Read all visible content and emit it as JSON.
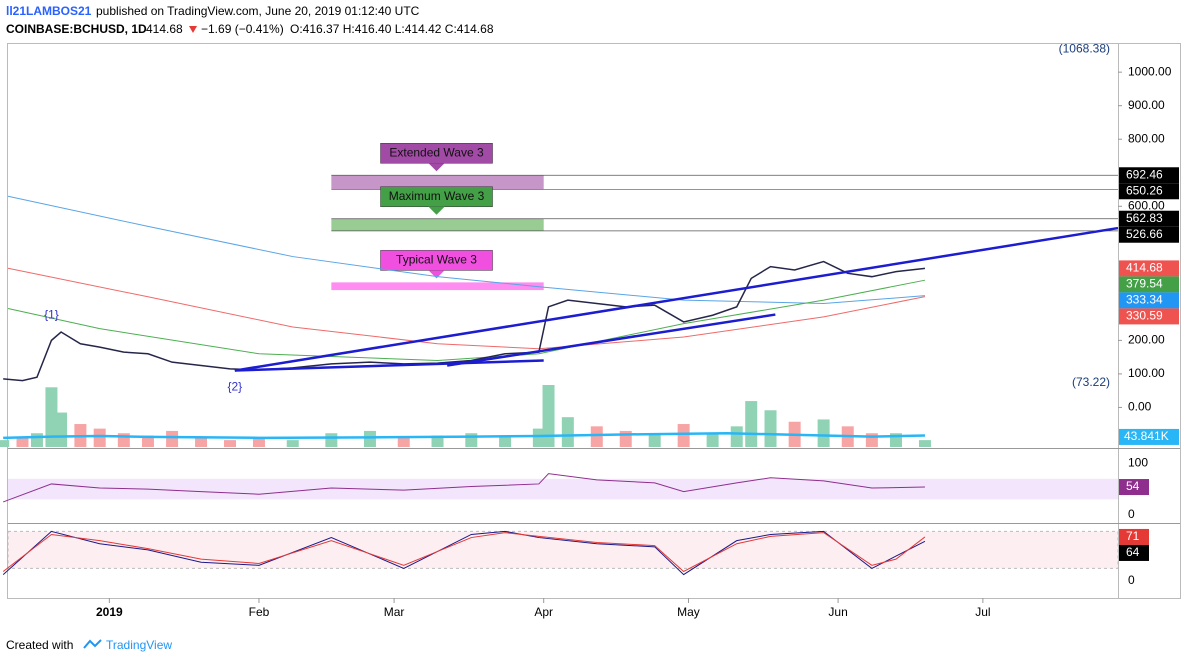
{
  "header": {
    "author": "ll21LAMBOS21",
    "published": "published on TradingView.com, June 20, 2019 01:12:40 UTC",
    "symbol": "COINBASE:BCHUSD, 1D",
    "last": "414.68",
    "change": "−1.69 (−0.41%)",
    "ohlc": "O:416.37 H:416.40 L:414.42 C:414.68"
  },
  "footer": {
    "created": "Created with",
    "brand": "TradingView"
  },
  "chart_data": {
    "type": "line",
    "xlim": [
      1,
      231
    ],
    "ylim": [
      -121,
      1084
    ],
    "xticks": [
      {
        "value": 22,
        "label": "2019"
      },
      {
        "value": 53,
        "label": "Feb"
      },
      {
        "value": 81,
        "label": "Mar"
      },
      {
        "value": 112,
        "label": "Apr"
      },
      {
        "value": 142,
        "label": "May"
      },
      {
        "value": 173,
        "label": "Jun"
      },
      {
        "value": 203,
        "label": "Jul"
      }
    ],
    "yticks": [
      {
        "value": 0,
        "label": "0.00"
      },
      {
        "value": 100,
        "label": "100.00"
      },
      {
        "value": 200,
        "label": "200.00"
      },
      {
        "value": 600,
        "label": "600.00"
      },
      {
        "value": 800,
        "label": "800.00"
      },
      {
        "value": 900,
        "label": "900.00"
      },
      {
        "value": 1000,
        "label": "1000.00"
      }
    ],
    "x": [
      0,
      4,
      7,
      10,
      12,
      16,
      20,
      25,
      30,
      35,
      41,
      47,
      53,
      60,
      68,
      76,
      83,
      90,
      97,
      104,
      111,
      113,
      117,
      123,
      129,
      135,
      141,
      147,
      152,
      155,
      159,
      164,
      170,
      175,
      180,
      185,
      191
    ],
    "series": [
      {
        "name": "BCHUSD",
        "color": "#26264a",
        "values": [
          85,
          80,
          90,
          200,
          225,
          190,
          180,
          165,
          160,
          135,
          125,
          115,
          112,
          118,
          130,
          135,
          130,
          132,
          140,
          160,
          165,
          300,
          320,
          310,
          300,
          305,
          255,
          275,
          300,
          385,
          420,
          410,
          435,
          400,
          390,
          405,
          414.68
        ]
      }
    ],
    "moving_averages": [
      {
        "color": "#5aa5e6",
        "x": [
          1,
          30,
          60,
          90,
          111,
          141,
          170,
          191
        ],
        "values": [
          630,
          540,
          450,
          390,
          360,
          320,
          310,
          333.34
        ]
      },
      {
        "color": "#ef6a6a",
        "x": [
          1,
          30,
          60,
          90,
          111,
          141,
          170,
          191
        ],
        "values": [
          415,
          330,
          240,
          190,
          175,
          210,
          270,
          330.59
        ]
      },
      {
        "color": "#4caf50",
        "x": [
          1,
          20,
          53,
          90,
          111,
          141,
          170,
          191
        ],
        "values": [
          295,
          235,
          160,
          140,
          160,
          250,
          320,
          379.54
        ]
      }
    ],
    "trendlines": [
      {
        "x": [
          48,
          231
        ],
        "y": [
          110,
          535
        ]
      },
      {
        "x": [
          92,
          160
        ],
        "y": [
          125,
          277
        ]
      },
      {
        "x": [
          48,
          112
        ],
        "y": [
          110,
          140
        ]
      }
    ],
    "zones": [
      {
        "label": "Extended Wave 3",
        "from": 650.26,
        "to": 692.46,
        "x": [
          68,
          112
        ],
        "color": "#c796c8",
        "tag": "#a24ba6"
      },
      {
        "label": "Maximum Wave 3",
        "from": 526.66,
        "to": 562.83,
        "x": [
          68,
          112
        ],
        "color": "#98cc92",
        "tag": "#43a047"
      },
      {
        "label": "Typical Wave 3",
        "from": 350,
        "to": 373,
        "x": [
          68,
          112
        ],
        "color": "#ff8cf0",
        "tag": "#f04fe0"
      }
    ],
    "annotations": [
      {
        "label": "{1}",
        "x": 10,
        "y": 275
      },
      {
        "label": "{2}",
        "x": 48,
        "y": 60
      }
    ],
    "hi_lo": [
      {
        "value": 1068.38,
        "label": "(1068.38)"
      },
      {
        "value": 73.22,
        "label": "(73.22)"
      }
    ],
    "price_labels": [
      {
        "value": 692.46,
        "color": "#000000"
      },
      {
        "value": 650.26,
        "color": "#000000"
      },
      {
        "value": 562.83,
        "color": "#000000"
      },
      {
        "value": 526.66,
        "color": "#000000"
      },
      {
        "value": 414.68,
        "color": "#ef5350"
      },
      {
        "value": 379.54,
        "color": "#43a047"
      },
      {
        "value": 333.34,
        "color": "#2196f3"
      },
      {
        "value": 330.59,
        "color": "#ef5350"
      }
    ],
    "volume": {
      "vlim": [
        0,
        270
      ],
      "values": [
        30,
        40,
        60,
        260,
        150,
        100,
        80,
        60,
        50,
        70,
        40,
        30,
        35,
        30,
        60,
        70,
        45,
        50,
        60,
        50,
        80,
        270,
        130,
        90,
        70,
        60,
        100,
        60,
        90,
        200,
        160,
        110,
        120,
        90,
        60,
        60,
        30
      ],
      "ma": [
        40,
        45,
        48,
        44,
        40,
        42,
        45,
        48,
        55,
        60,
        50,
        45,
        50
      ],
      "ma_x": [
        0,
        10,
        20,
        30,
        53,
        76,
        97,
        111,
        130,
        150,
        170,
        180,
        191
      ],
      "label": {
        "value": 43.841,
        "label": "43.841K"
      }
    },
    "rsi": {
      "ylim": [
        -16,
        128
      ],
      "yticks": [
        0,
        100
      ],
      "band": [
        30,
        70
      ],
      "x": [
        0,
        10,
        20,
        30,
        41,
        53,
        68,
        83,
        97,
        111,
        113,
        123,
        135,
        141,
        152,
        159,
        170,
        180,
        191
      ],
      "values": [
        25,
        60,
        52,
        50,
        45,
        40,
        52,
        48,
        55,
        60,
        80,
        68,
        62,
        45,
        62,
        72,
        66,
        52,
        54
      ],
      "last": 54
    },
    "stoch": {
      "ylim": [
        -28,
        92
      ],
      "yticks": [
        0
      ],
      "band": [
        20,
        80
      ],
      "x": [
        0,
        10,
        20,
        30,
        41,
        53,
        68,
        83,
        97,
        104,
        111,
        123,
        135,
        141,
        152,
        159,
        170,
        180,
        185,
        191
      ],
      "k": [
        10,
        80,
        60,
        50,
        30,
        25,
        70,
        20,
        75,
        80,
        70,
        60,
        55,
        10,
        65,
        75,
        80,
        20,
        40,
        64
      ],
      "d": [
        15,
        75,
        65,
        52,
        35,
        28,
        65,
        25,
        70,
        78,
        72,
        62,
        57,
        15,
        60,
        72,
        78,
        25,
        35,
        71
      ],
      "last": [
        71,
        64
      ]
    }
  }
}
